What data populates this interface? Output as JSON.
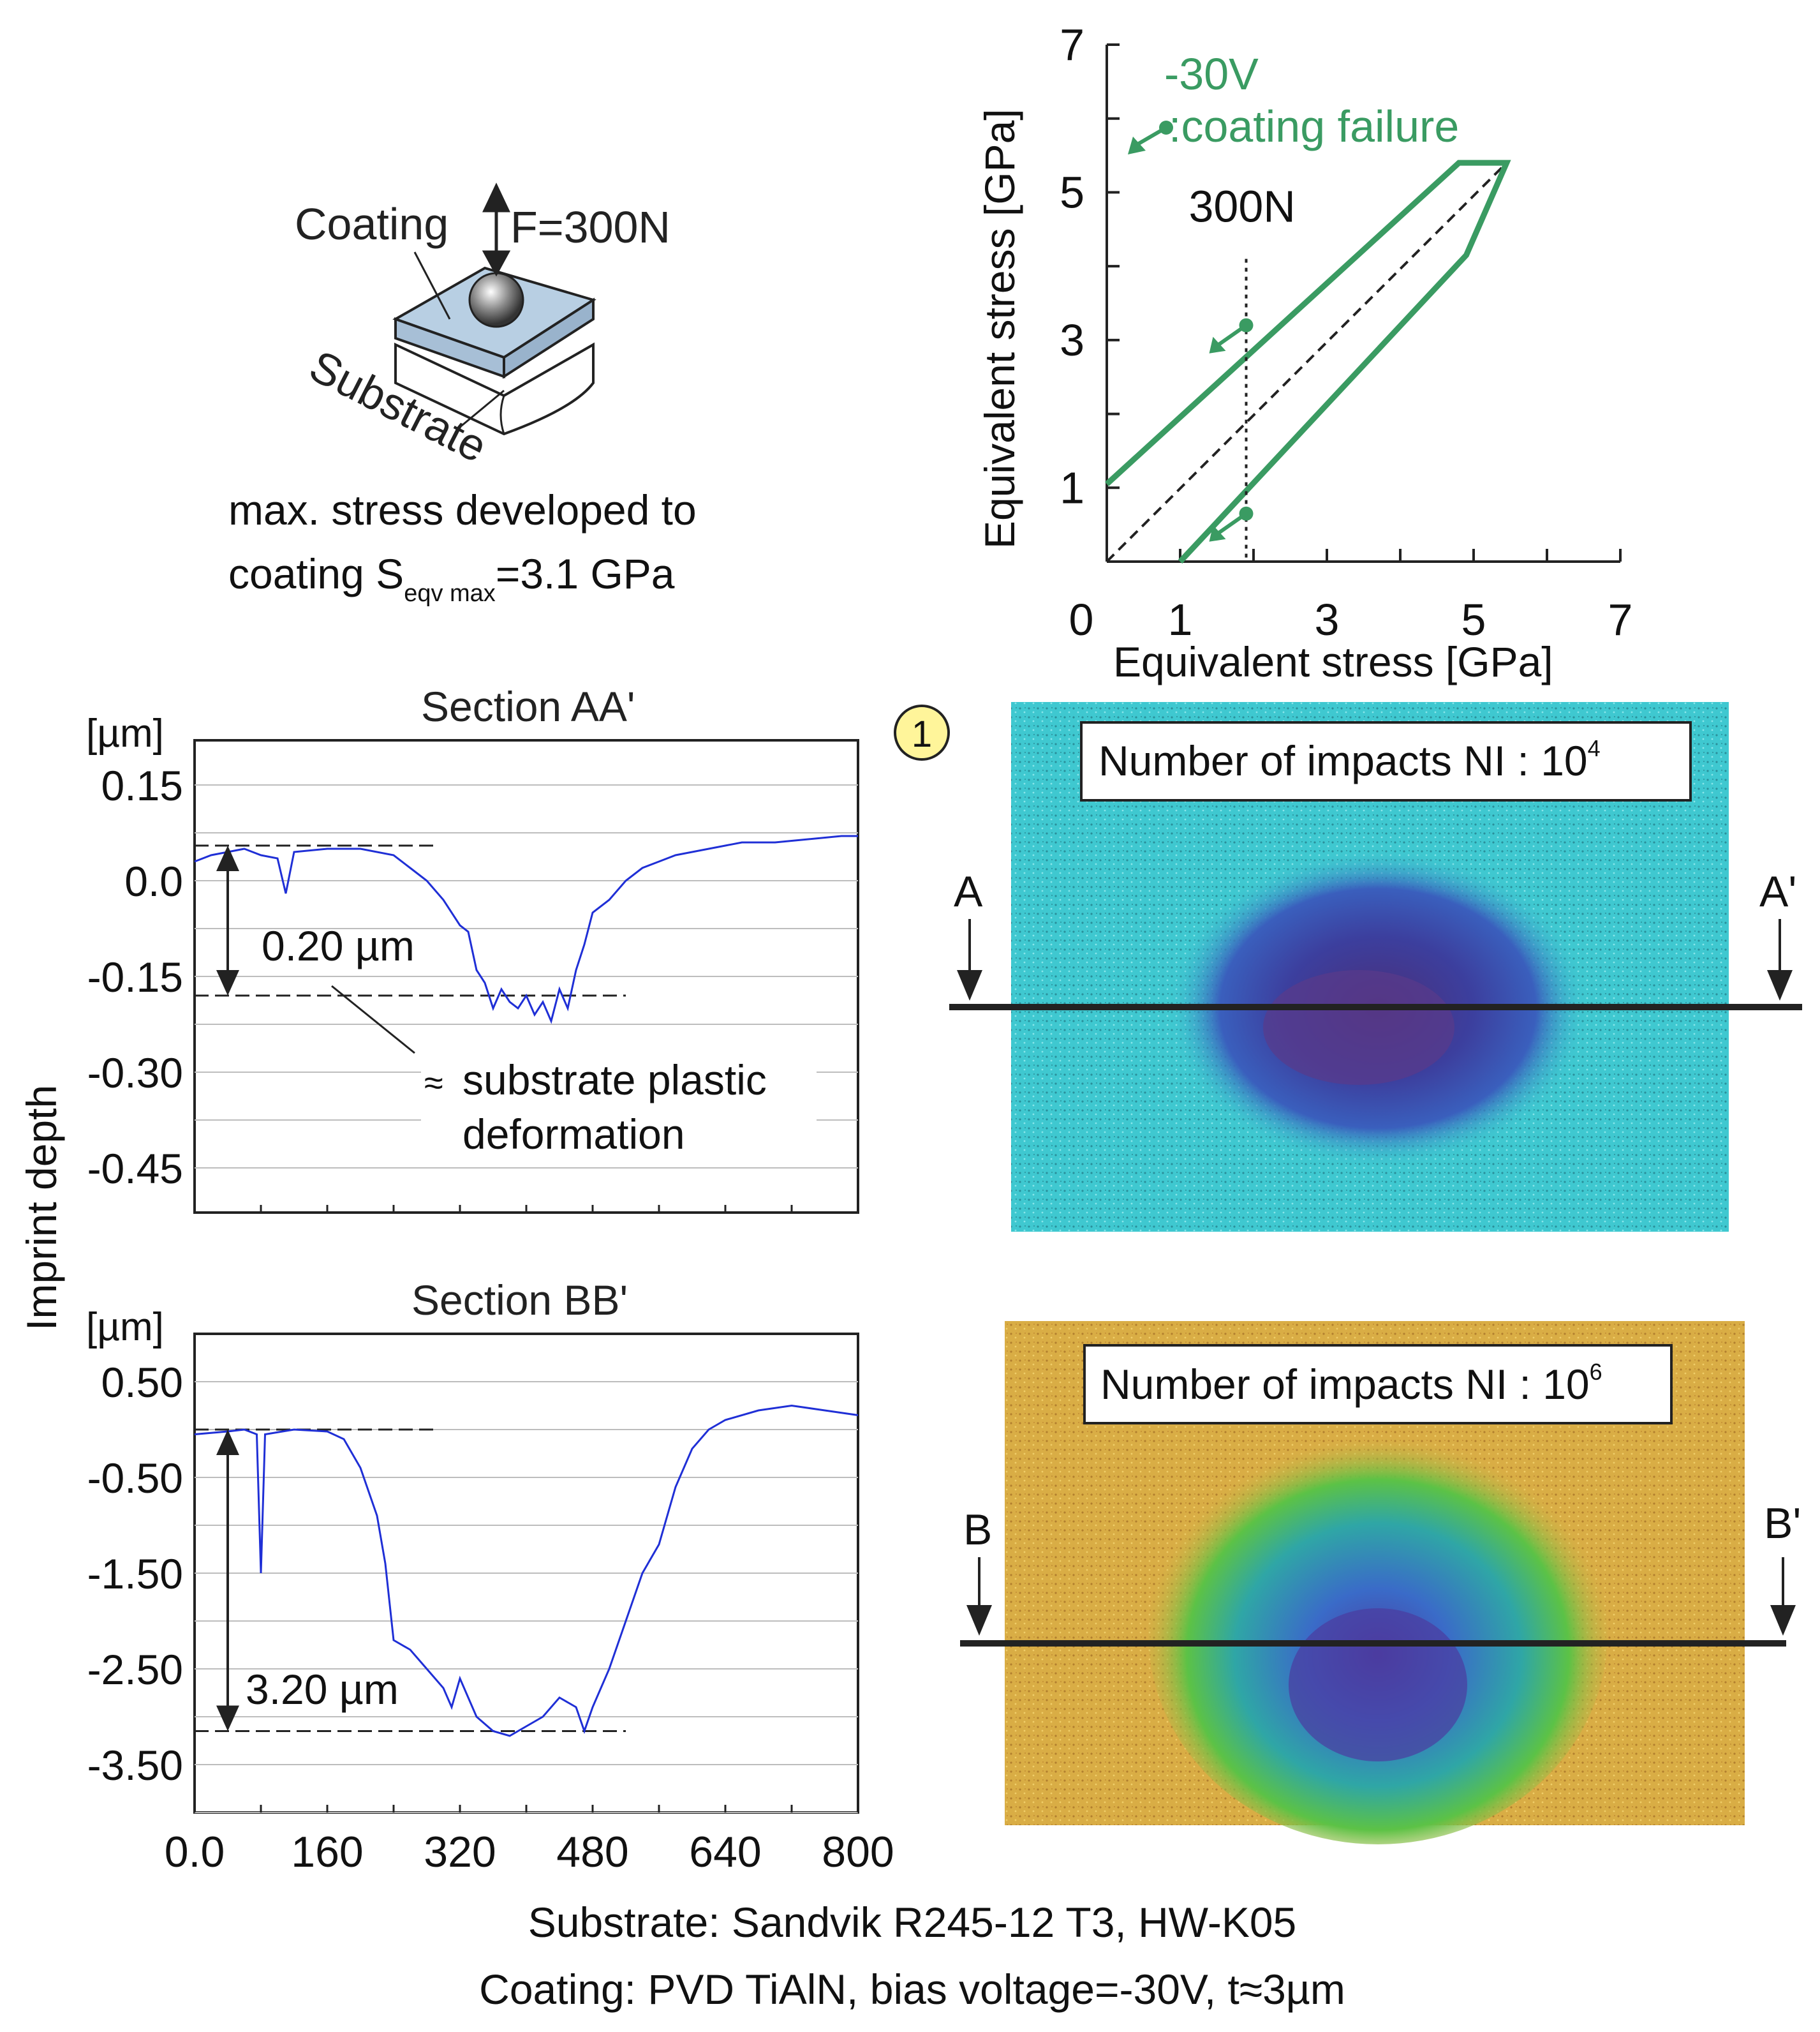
{
  "schematic": {
    "coating_label": "Coating",
    "force_label": "F=300N",
    "substrate_label": "Substrate",
    "stress_line1": "max. stress developed to",
    "stress_line2_prefix": "coating S",
    "stress_line2_sub": "eqv max",
    "stress_line2_suffix": "=3.1 GPa"
  },
  "colors": {
    "curve_green": "#3a9b62",
    "profile_blue": "#1f2fd6",
    "marker_yellow": "#fff59a",
    "cyan_surface": "#3fc8d0",
    "yellow_surface": "#d9b444"
  },
  "image_panels": {
    "marker": "1",
    "top": {
      "label_prefix": "Number of impacts NI : 10",
      "exponent": "4",
      "left_mark": "A",
      "right_mark": "A'"
    },
    "bottom": {
      "label_prefix": "Number of impacts NI : 10",
      "exponent": "6",
      "left_mark": "B",
      "right_mark": "B'"
    }
  },
  "shared_ylabel": "Imprint depth",
  "footer": {
    "line1": "Substrate: Sandvik R245-12 T3, HW-K05",
    "line2": "Coating: PVD TiAlN, bias voltage=-30V, t≈3µm"
  },
  "chart_data": [
    {
      "id": "stress_envelope",
      "type": "line",
      "xlabel": "Equivalent stress [GPa]",
      "ylabel": "Equivalent stress [GPa]",
      "xlim": [
        0,
        7
      ],
      "ylim": [
        0,
        7
      ],
      "xticks": [
        "0",
        "1",
        "3",
        "5",
        "7"
      ],
      "yticks": [
        "1",
        "3",
        "5",
        "7"
      ],
      "series_label": "-30V",
      "legend_text": ":coating failure",
      "load_label": "300N",
      "load_x": 1.9,
      "envelope": [
        [
          0,
          1.05
        ],
        [
          4.8,
          5.4
        ],
        [
          5.45,
          5.4
        ],
        [
          4.9,
          4.15
        ],
        [
          1.0,
          0
        ]
      ],
      "diagonal": [
        [
          0,
          0
        ],
        [
          5.45,
          5.4
        ]
      ],
      "failure_points": [
        [
          1.9,
          3.2
        ],
        [
          1.9,
          0.65
        ]
      ]
    },
    {
      "id": "section_aa",
      "type": "line",
      "title": "Section AA'",
      "unit": "[µm]",
      "ylim": [
        -0.52,
        0.22
      ],
      "yticks": [
        "0.15",
        "0.0",
        "-0.15",
        "-0.30",
        "-0.45"
      ],
      "yticks_values": [
        0.15,
        0.0,
        -0.15,
        -0.3,
        -0.45
      ],
      "xlim": [
        0,
        800
      ],
      "depth_label": "0.20 µm",
      "upper_ref": 0.055,
      "lower_ref": -0.18,
      "annotation_line1": "substrate plastic",
      "annotation_line2": "deformation",
      "profile": [
        [
          0,
          0.03
        ],
        [
          20,
          0.04
        ],
        [
          40,
          0.045
        ],
        [
          60,
          0.05
        ],
        [
          80,
          0.04
        ],
        [
          100,
          0.035
        ],
        [
          110,
          -0.02
        ],
        [
          120,
          0.045
        ],
        [
          160,
          0.05
        ],
        [
          200,
          0.05
        ],
        [
          240,
          0.04
        ],
        [
          260,
          0.02
        ],
        [
          280,
          0.0
        ],
        [
          300,
          -0.03
        ],
        [
          320,
          -0.07
        ],
        [
          330,
          -0.08
        ],
        [
          340,
          -0.14
        ],
        [
          350,
          -0.16
        ],
        [
          360,
          -0.2
        ],
        [
          370,
          -0.17
        ],
        [
          380,
          -0.19
        ],
        [
          390,
          -0.2
        ],
        [
          400,
          -0.18
        ],
        [
          410,
          -0.21
        ],
        [
          420,
          -0.19
        ],
        [
          430,
          -0.22
        ],
        [
          440,
          -0.17
        ],
        [
          450,
          -0.2
        ],
        [
          460,
          -0.14
        ],
        [
          470,
          -0.1
        ],
        [
          480,
          -0.05
        ],
        [
          500,
          -0.03
        ],
        [
          520,
          0.0
        ],
        [
          540,
          0.02
        ],
        [
          560,
          0.03
        ],
        [
          580,
          0.04
        ],
        [
          600,
          0.045
        ],
        [
          620,
          0.05
        ],
        [
          640,
          0.055
        ],
        [
          660,
          0.06
        ],
        [
          700,
          0.06
        ],
        [
          740,
          0.065
        ],
        [
          780,
          0.07
        ],
        [
          800,
          0.07
        ]
      ]
    },
    {
      "id": "section_bb",
      "type": "line",
      "title": "Section BB'",
      "unit": "[µm]",
      "ylim": [
        -4.0,
        1.0
      ],
      "yticks": [
        "0.50",
        "-0.50",
        "-1.50",
        "-2.50",
        "-3.50"
      ],
      "yticks_values": [
        0.5,
        -0.5,
        -1.5,
        -2.5,
        -3.5
      ],
      "xlim": [
        0,
        800
      ],
      "xticks": [
        "0.0",
        "160",
        "320",
        "480",
        "640",
        "800"
      ],
      "xticks_values": [
        0,
        160,
        320,
        480,
        640,
        800
      ],
      "depth_label": "3.20 µm",
      "upper_ref": 0.0,
      "lower_ref": -3.15,
      "profile": [
        [
          0,
          -0.05
        ],
        [
          40,
          -0.02
        ],
        [
          60,
          0.0
        ],
        [
          75,
          -0.05
        ],
        [
          80,
          -1.5
        ],
        [
          85,
          -0.05
        ],
        [
          120,
          0.0
        ],
        [
          160,
          -0.02
        ],
        [
          180,
          -0.1
        ],
        [
          200,
          -0.4
        ],
        [
          220,
          -0.9
        ],
        [
          230,
          -1.4
        ],
        [
          240,
          -2.2
        ],
        [
          260,
          -2.3
        ],
        [
          280,
          -2.5
        ],
        [
          300,
          -2.7
        ],
        [
          310,
          -2.9
        ],
        [
          320,
          -2.6
        ],
        [
          330,
          -2.8
        ],
        [
          340,
          -3.0
        ],
        [
          360,
          -3.15
        ],
        [
          380,
          -3.2
        ],
        [
          400,
          -3.1
        ],
        [
          420,
          -3.0
        ],
        [
          440,
          -2.8
        ],
        [
          460,
          -2.9
        ],
        [
          470,
          -3.15
        ],
        [
          480,
          -2.9
        ],
        [
          500,
          -2.5
        ],
        [
          520,
          -2.0
        ],
        [
          540,
          -1.5
        ],
        [
          560,
          -1.2
        ],
        [
          580,
          -0.6
        ],
        [
          600,
          -0.2
        ],
        [
          620,
          0.0
        ],
        [
          640,
          0.1
        ],
        [
          680,
          0.2
        ],
        [
          720,
          0.25
        ],
        [
          760,
          0.2
        ],
        [
          800,
          0.15
        ]
      ]
    }
  ]
}
